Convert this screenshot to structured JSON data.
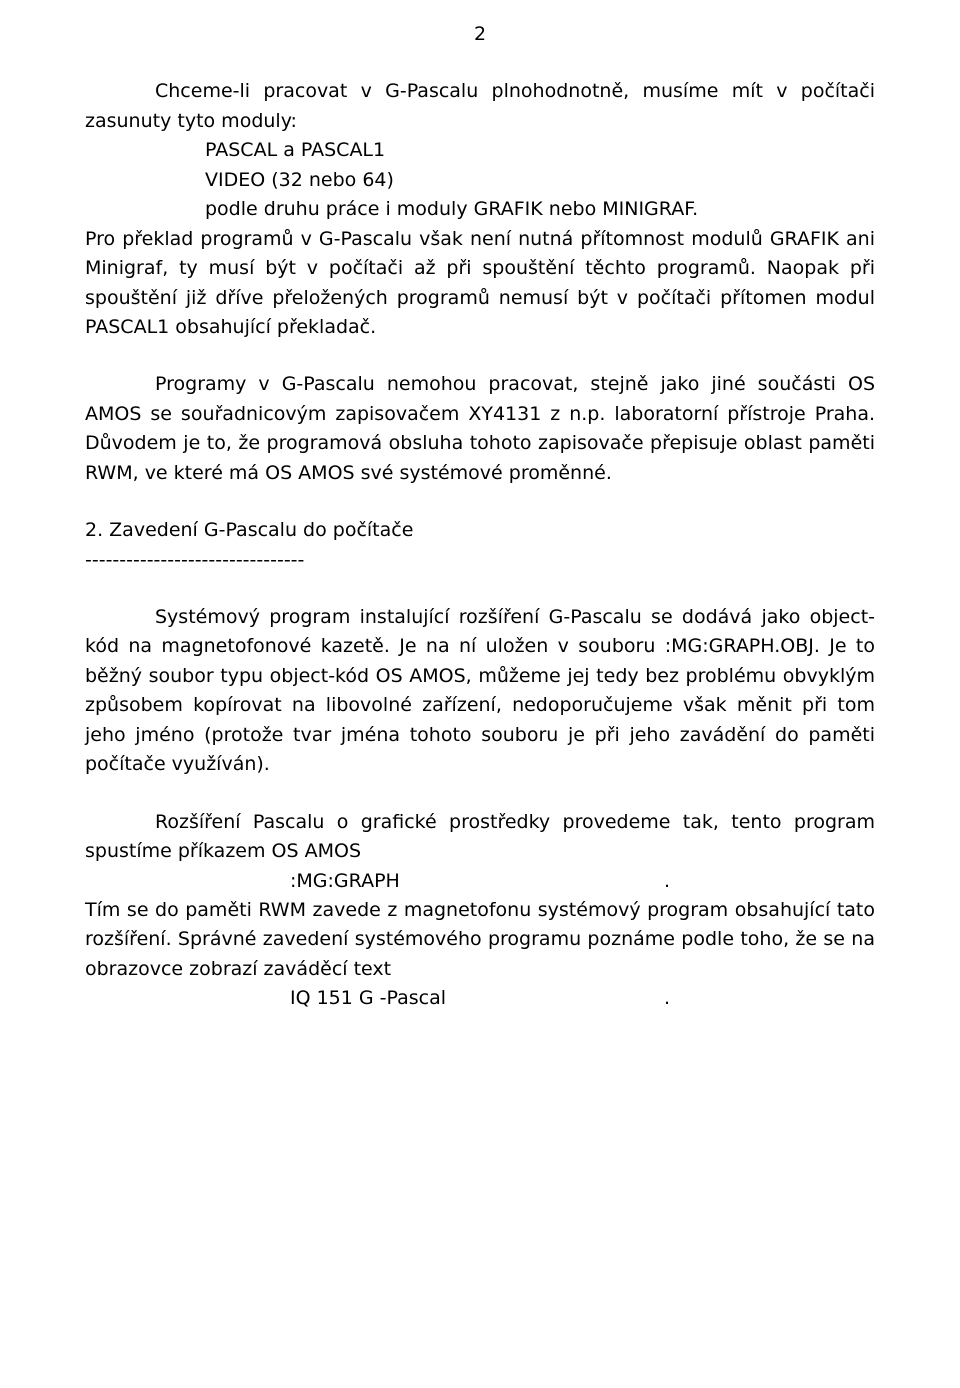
{
  "page_number": "2",
  "p1_lead": "Chceme-li pracovat v G-Pascalu plnohodnotně, musíme mít v počítači zasunuty tyto moduly:",
  "modules": "PASCAL a PASCAL1\nVIDEO (32 nebo 64)\npodle druhu práce i moduly GRAFIK nebo MINIGRAF.",
  "p1_tail": "Pro překlad programů v G-Pascalu však není nutná přítomnost modulů GRAFIK ani Minigraf, ty musí být v počítači až při spouštění těchto programů. Naopak při spouštění již dříve přeložených programů nemusí být v počítači přítomen modul PASCAL1 obsahující překladač.",
  "p2": "Programy v G-Pascalu nemohou pracovat, stejně jako jiné součásti OS AMOS se souřadnicovým zapisovačem XY4131 z n.p. laboratorní přístroje Praha. Důvodem je to, že programová obsluha tohoto zapisovače přepisuje oblast paměti RWM, ve které má OS AMOS své systémové proměnné.",
  "heading2": "2. Zavedení G-Pascalu do počítače",
  "heading2_dashes": "--------------------------------",
  "p3": "Systémový program instalující rozšíření G-Pascalu se dodává jako object-kód na magnetofonové kazetě. Je na ní uložen v souboru :MG:GRAPH.OBJ. Je to běžný soubor typu object-kód OS AMOS, můžeme jej tedy bez problému obvyklým způsobem kopírovat na libovolné zařízení, nedoporučujeme však měnit při tom jeho jméno (protože tvar jména tohoto souboru je při jeho zavádění do paměti počítače využíván).",
  "p4": "Rozšíření Pascalu o grafické prostředky provedeme tak, tento program spustíme příkazem OS AMOS",
  "cmd1": ":MG:GRAPH",
  "p5": "Tím se do paměti RWM zavede z magnetofonu systémový program obsahující tato rozšíření. Správné zavedení systémového programu poznáme podle toho, že se na obrazovce zobrazí zaváděcí text",
  "cmd2": "IQ 151 G -Pascal"
}
